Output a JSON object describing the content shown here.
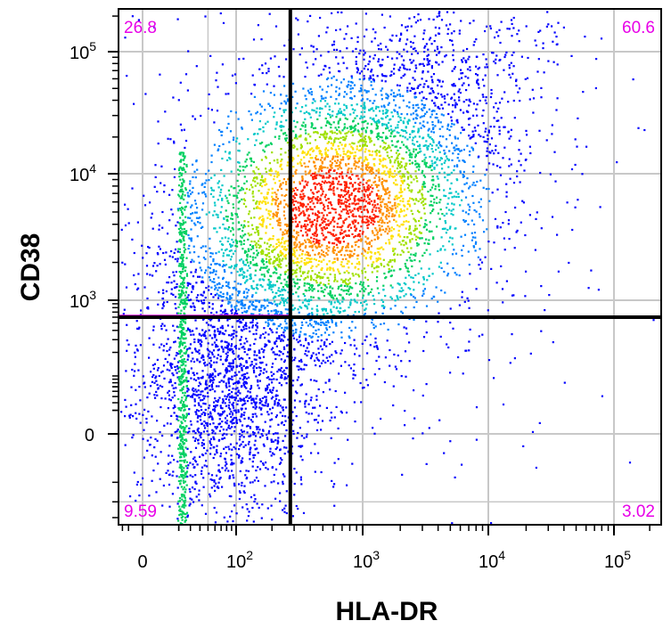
{
  "colors": {
    "quadrant_label": "#e800e8",
    "gate_line": "#000000",
    "grid": "#c8c8c8",
    "density_scale": [
      "#0000ff",
      "#0080ff",
      "#00c8c8",
      "#00d060",
      "#a0e000",
      "#ffe000",
      "#ff9000",
      "#ff2000"
    ]
  },
  "chart_data": {
    "type": "scatter",
    "subtype": "flow-cytometry-density-dot-plot",
    "xlabel": "HLA-DR",
    "ylabel": "CD38",
    "x_scale": "biexponential",
    "y_scale": "biexponential",
    "x_ticks": [
      {
        "value": 0,
        "base": "0",
        "exp": ""
      },
      {
        "value": 100,
        "base": "10",
        "exp": "2"
      },
      {
        "value": 1000,
        "base": "10",
        "exp": "3"
      },
      {
        "value": 10000,
        "base": "10",
        "exp": "4"
      },
      {
        "value": 100000,
        "base": "10",
        "exp": "5"
      }
    ],
    "y_ticks": [
      {
        "value": 0,
        "base": "0",
        "exp": ""
      },
      {
        "value": 1000,
        "base": "10",
        "exp": "3"
      },
      {
        "value": 10000,
        "base": "10",
        "exp": "4"
      },
      {
        "value": 100000,
        "base": "10",
        "exp": "5"
      }
    ],
    "x_range": [
      -150,
      250000
    ],
    "y_range": [
      -250,
      230000
    ],
    "grid": true,
    "gates": {
      "x_threshold": 280,
      "y_threshold": 600
    },
    "quadrants": {
      "upper_left": "26.8",
      "upper_right": "60.6",
      "lower_left": "9.59",
      "lower_right": "3.02"
    },
    "population_center": {
      "x": 600,
      "y": 5500
    }
  }
}
